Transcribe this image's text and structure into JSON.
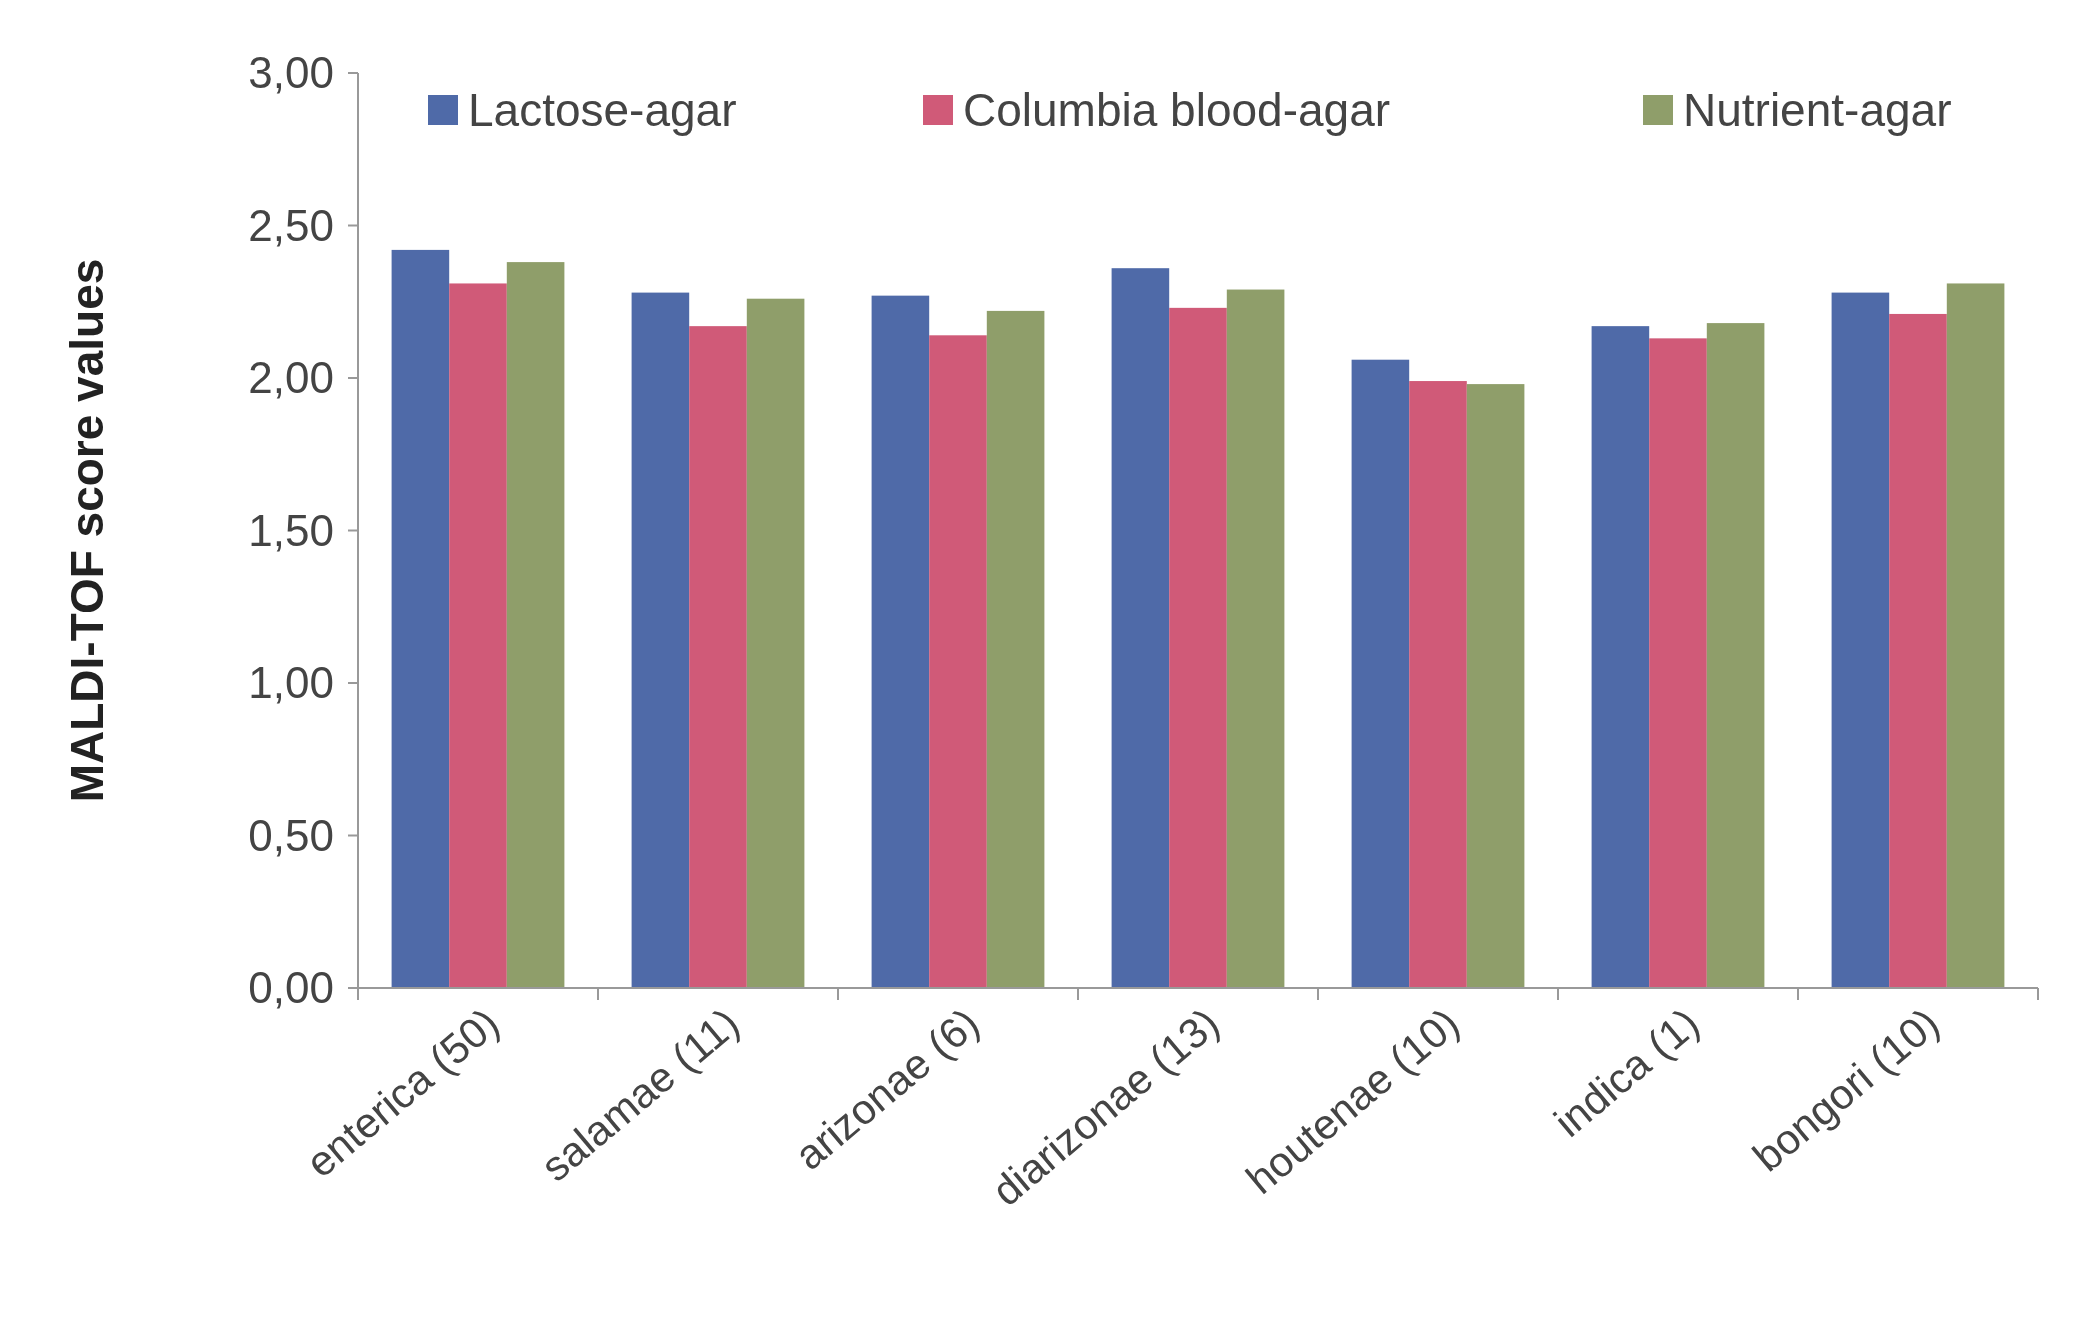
{
  "chart_data": {
    "type": "bar",
    "ylabel": "MALDI-TOF  score values",
    "categories": [
      "enterica (50)",
      "salamae (11)",
      "arizonae (6)",
      "diarizonae (13)",
      "houtenae (10)",
      "indica (1)",
      "bongori (10)"
    ],
    "series": [
      {
        "name": "Lactose-agar",
        "color": "#4f6aa8",
        "values": [
          2.42,
          2.28,
          2.27,
          2.36,
          2.06,
          2.17,
          2.28
        ]
      },
      {
        "name": "Columbia blood-agar",
        "color": "#d05a78",
        "values": [
          2.31,
          2.17,
          2.14,
          2.23,
          1.99,
          2.13,
          2.21
        ]
      },
      {
        "name": "Nutrient-agar",
        "color": "#8f9e6a",
        "values": [
          2.38,
          2.26,
          2.22,
          2.29,
          1.98,
          2.18,
          2.31
        ]
      }
    ],
    "ylim": [
      0,
      3
    ],
    "yticks": [
      {
        "value": 0,
        "label": "0,00"
      },
      {
        "value": 0.5,
        "label": "0,50"
      },
      {
        "value": 1,
        "label": "1,00"
      },
      {
        "value": 1.5,
        "label": "1,50"
      },
      {
        "value": 2,
        "label": "2,00"
      },
      {
        "value": 2.5,
        "label": "2,50"
      },
      {
        "value": 3,
        "label": "3,00"
      }
    ],
    "grid": false,
    "legend": "top"
  }
}
